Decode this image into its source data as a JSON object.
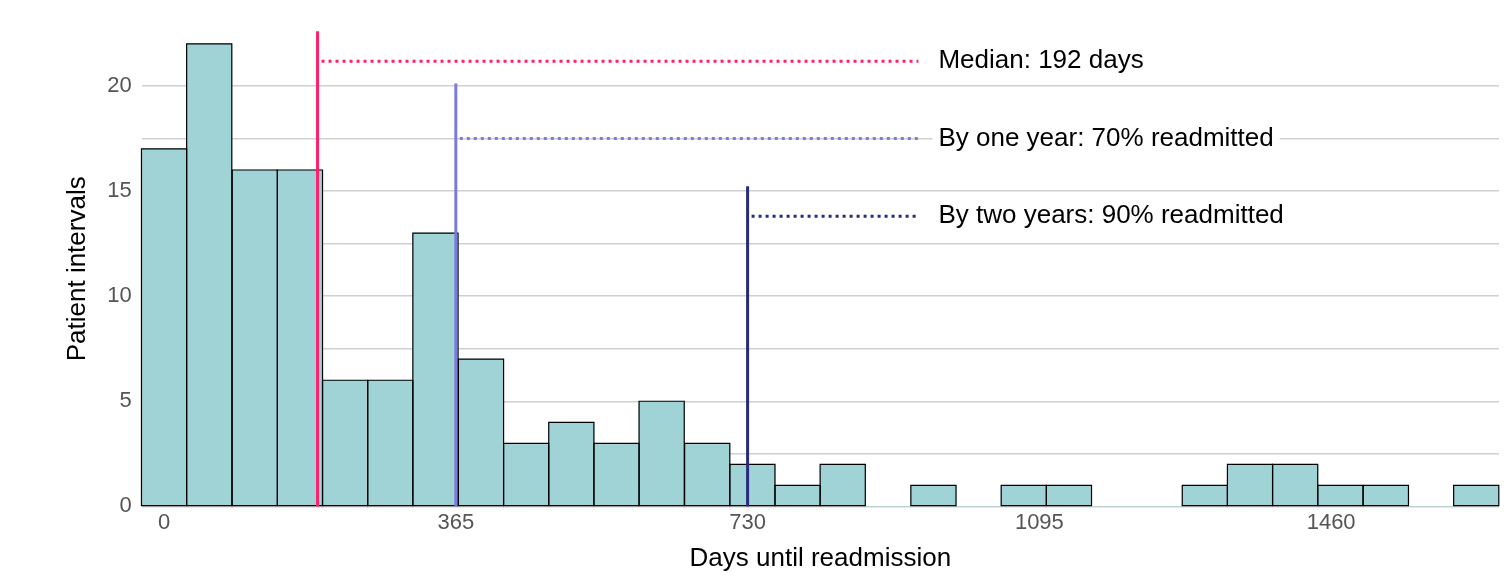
{
  "chart_data": {
    "type": "histogram",
    "xlabel": "Days until readmission",
    "ylabel": "Patient intervals",
    "bins": [
      -28,
      28,
      85,
      142,
      198,
      255,
      311,
      368,
      425,
      481,
      538,
      594,
      651,
      708,
      764,
      821,
      877,
      934,
      991,
      1047,
      1104,
      1160,
      1217,
      1274,
      1330,
      1387,
      1443,
      1500,
      1557,
      1613,
      1670
    ],
    "values": [
      17,
      22,
      16,
      16,
      6,
      6,
      13,
      7,
      3,
      4,
      3,
      5,
      3,
      2,
      1,
      2,
      0,
      1,
      0,
      1,
      1,
      0,
      0,
      1,
      2,
      2,
      1,
      1,
      0,
      1
    ],
    "color": "#9fd3d6",
    "xlim": [
      -28,
      1670
    ],
    "xticks": [
      0,
      365,
      730,
      1095,
      1460
    ],
    "ylim": [
      0,
      22.6
    ],
    "yticks": [
      0,
      {
        "value": 2.5,
        "label": null
      },
      5,
      {
        "value": 7.5,
        "label": null
      },
      10,
      {
        "value": 12.5,
        "label": null
      },
      15,
      {
        "value": 17.5,
        "label": null
      },
      20
    ],
    "grid": "y",
    "legend": false,
    "ref_lines": [
      {
        "axis": "x",
        "value": 192,
        "label": "Median: 192 days",
        "color": "#ff1f6b",
        "line_style": "solid"
      },
      {
        "axis": "x",
        "value": 365,
        "color": "#7b7bdb",
        "line_style": "solid"
      },
      {
        "axis": "x",
        "value": 730,
        "color": "#2a2a7a",
        "line_style": "solid"
      }
    ],
    "annotations": [
      {
        "text": "By one year: 70% readmitted",
        "x": 365,
        "y": 17.5
      },
      {
        "text": "By two years: 90% readmitted",
        "x": 730,
        "y": 13.8
      }
    ]
  }
}
